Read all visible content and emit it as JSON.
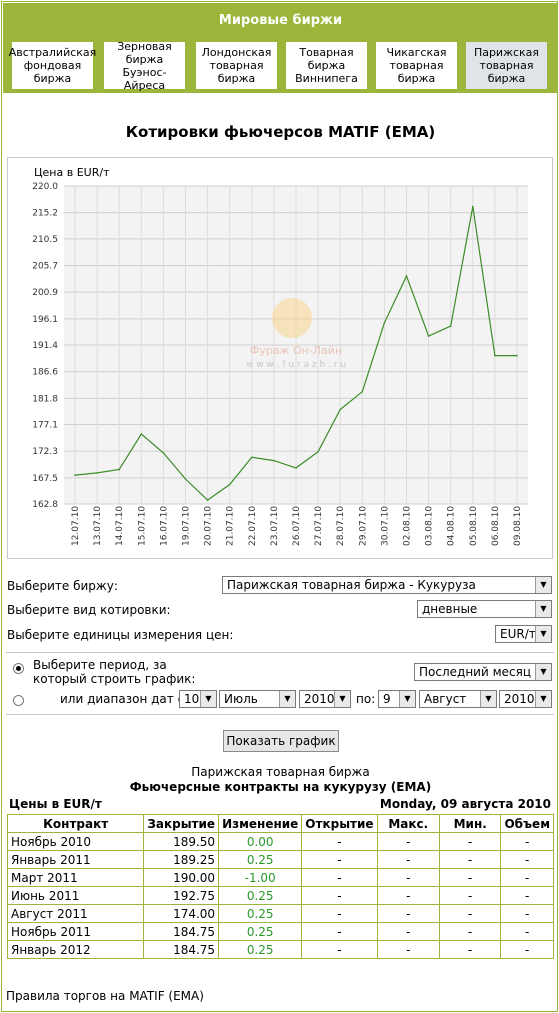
{
  "exchanges": {
    "title": "Мировые биржи",
    "tabs": [
      "Австралийская фондовая биржа",
      "Зерновая биржа Буэнос-Айреса",
      "Лондонская товарная биржа",
      "Товарная биржа Виннипега",
      "Чикагская товарная биржа",
      "Парижская товарная биржа"
    ],
    "active_index": 5
  },
  "page_title": "Котировки фьючерсов MATIF (EMA)",
  "chart_data": {
    "type": "line",
    "ylabel": "Цена в EUR/т",
    "ylim": [
      162.8,
      220.0
    ],
    "yticks": [
      "220.0",
      "215.2",
      "210.5",
      "205.7",
      "200.9",
      "196.1",
      "191.4",
      "186.6",
      "181.8",
      "177.1",
      "172.3",
      "167.5",
      "162.8"
    ],
    "categories": [
      "12.07.10",
      "13.07.10",
      "14.07.10",
      "15.07.10",
      "16.07.10",
      "19.07.10",
      "20.07.10",
      "21.07.10",
      "22.07.10",
      "23.07.10",
      "26.07.10",
      "27.07.10",
      "28.07.10",
      "29.07.10",
      "30.07.10",
      "02.08.10",
      "03.08.10",
      "04.08.10",
      "05.08.10",
      "06.08.10",
      "09.08.10"
    ],
    "values": [
      168.0,
      168.4,
      169.0,
      175.4,
      172.0,
      167.3,
      163.5,
      166.3,
      171.2,
      170.6,
      169.3,
      172.2,
      179.8,
      183.0,
      195.4,
      203.8,
      193.0,
      194.8,
      216.3,
      189.5,
      189.5
    ],
    "color": "#3c8c28",
    "watermark": {
      "name": "Фураж Он-Лайн",
      "site": "w w w . f u r a z h . r u"
    }
  },
  "form": {
    "exchange_label": "Выберите биржу:",
    "exchange_value": "Парижская товарная биржа - Кукуруза",
    "quote_label": "Выберите вид котировки:",
    "quote_value": "дневные",
    "units_label": "Выберите единицы измерения цен:",
    "units_value": "EUR/т",
    "period_label": "Выберите период, за который строить график:",
    "period_value": "Последний месяц",
    "range_label": "или диапазон дат с:",
    "from_day": "10",
    "from_month": "Июль",
    "from_year": "2010",
    "to_label": "по:",
    "to_day": "9",
    "to_month": "Август",
    "to_year": "2010",
    "button": "Показать график"
  },
  "table": {
    "exchange": "Парижская товарная биржа",
    "title": "Фьючерсные контракты на кукурузу (EMA)",
    "units": "Цены в EUR/т",
    "date": "Monday, 09 августа 2010",
    "headers": [
      "Контракт",
      "Закрытие",
      "Изменение",
      "Открытие",
      "Макс.",
      "Мин.",
      "Объем"
    ],
    "rows": [
      [
        "Ноябрь 2010",
        "189.50",
        "0.00",
        "-",
        "-",
        "-",
        "-"
      ],
      [
        "Январь 2011",
        "189.25",
        "0.25",
        "-",
        "-",
        "-",
        "-"
      ],
      [
        "Март 2011",
        "190.00",
        "-1.00",
        "-",
        "-",
        "-",
        "-"
      ],
      [
        "Июнь 2011",
        "192.75",
        "0.25",
        "-",
        "-",
        "-",
        "-"
      ],
      [
        "Август 2011",
        "174.00",
        "0.25",
        "-",
        "-",
        "-",
        "-"
      ],
      [
        "Ноябрь 2011",
        "184.75",
        "0.25",
        "-",
        "-",
        "-",
        "-"
      ],
      [
        "Январь 2012",
        "184.75",
        "0.25",
        "-",
        "-",
        "-",
        "-"
      ]
    ]
  },
  "footer_link": "Правила торгов на MATIF (EMA)"
}
